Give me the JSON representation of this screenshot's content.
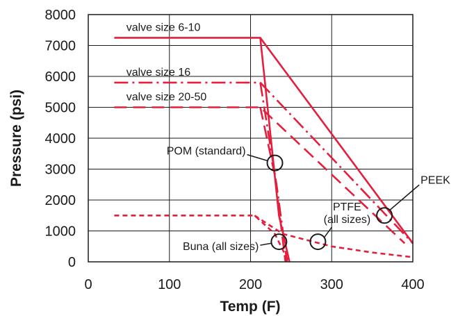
{
  "chart_data": {
    "type": "line",
    "title": "",
    "xlabel": "Temp (F)",
    "ylabel": "Pressure (psi)",
    "xlim": [
      0,
      400
    ],
    "ylim": [
      0,
      8000
    ],
    "x_ticks": [
      0,
      100,
      200,
      300,
      400
    ],
    "y_ticks": [
      0,
      1000,
      2000,
      3000,
      4000,
      5000,
      6000,
      7000,
      8000
    ],
    "grid": true,
    "color": "#e41e3c",
    "series": [
      {
        "name": "valve size 6-10",
        "style": "solid",
        "points": [
          [
            32,
            7250
          ],
          [
            212,
            7250
          ],
          [
            400,
            600
          ]
        ]
      },
      {
        "name": "valve size 6-10",
        "style": "solid",
        "points": [
          [
            212,
            7250
          ],
          [
            235,
            1500
          ],
          [
            248,
            0
          ]
        ]
      },
      {
        "name": "valve size 16",
        "style": "dashdot",
        "points": [
          [
            32,
            5800
          ],
          [
            212,
            5800
          ],
          [
            400,
            600
          ]
        ]
      },
      {
        "name": "valve size 16",
        "style": "dashdot",
        "points": [
          [
            212,
            5800
          ],
          [
            232,
            2500
          ],
          [
            245,
            0
          ]
        ]
      },
      {
        "name": "valve size 20-50",
        "style": "dashed",
        "points": [
          [
            32,
            5000
          ],
          [
            212,
            5000
          ],
          [
            390,
            600
          ]
        ]
      },
      {
        "name": "valve size 20-50",
        "style": "dashed",
        "points": [
          [
            212,
            5000
          ],
          [
            230,
            2800
          ],
          [
            243,
            0
          ]
        ]
      },
      {
        "name": "",
        "style": "dotted",
        "points": [
          [
            32,
            1500
          ],
          [
            205,
            1500
          ],
          [
            230,
            900
          ],
          [
            247,
            0
          ]
        ]
      },
      {
        "name": "",
        "style": "dotted",
        "points": [
          [
            205,
            1500
          ],
          [
            240,
            900
          ],
          [
            300,
            500
          ],
          [
            350,
            300
          ],
          [
            400,
            150
          ]
        ]
      }
    ],
    "annotations": [
      {
        "label": "valve size 6-10",
        "at": [
          40,
          7470
        ]
      },
      {
        "label": "valve size 16",
        "at": [
          40,
          6020
        ]
      },
      {
        "label": "valve size 20-50",
        "at": [
          40,
          5220
        ]
      },
      {
        "label": "POM (standard)",
        "circle_at": [
          230,
          3200
        ]
      },
      {
        "label": "PEEK",
        "circle_at": [
          365,
          1500
        ]
      },
      {
        "label": "PTFE",
        "label2": "(all sizes)",
        "circle_at": [
          283,
          650
        ]
      },
      {
        "label": "Buna (all sizes)",
        "circle_at": [
          235,
          650
        ]
      }
    ]
  }
}
